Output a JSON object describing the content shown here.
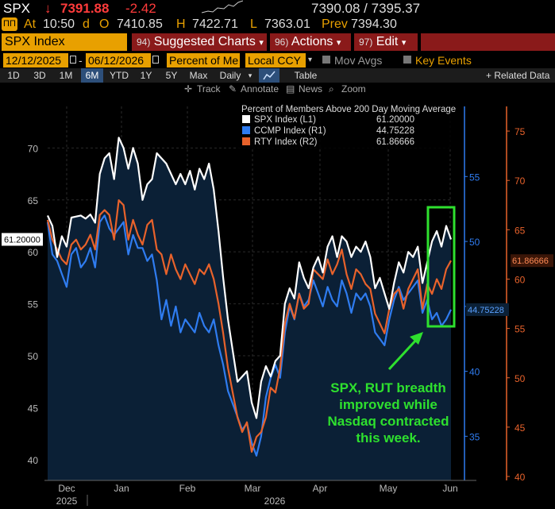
{
  "quote": {
    "ticker": "SPX",
    "arrow": "↓",
    "price": "7391.88",
    "change": "-2.42",
    "bid_ask": "7390.08 / 7395.37",
    "at_label": "At",
    "time": "10:50",
    "d_label": "d",
    "open_label": "O",
    "open": "7410.85",
    "high_label": "H",
    "high": "7422.71",
    "low_label": "L",
    "low": "7363.01",
    "prev_label": "Prev",
    "prev": "7394.30",
    "icon": "ticker-badge-icon"
  },
  "command_bar": {
    "security": "SPX Index",
    "suggested_num": "94)",
    "suggested_label": "Suggested Charts",
    "actions_num": "96)",
    "actions_label": "Actions",
    "edit_num": "97)",
    "edit_label": "Edit"
  },
  "params": {
    "start_date": "12/12/2025",
    "end_date": "06/12/2026",
    "field": "Percent of Me",
    "currency": "Local CCY",
    "mov_avgs": "Mov Avgs",
    "key_events": "Key Events"
  },
  "periods": [
    "1D",
    "3D",
    "1M",
    "6M",
    "YTD",
    "1Y",
    "5Y",
    "Max"
  ],
  "active_period": "6M",
  "frequency": "Daily",
  "table_label": "Table",
  "related_label": "+ Related Data",
  "tools": {
    "track": "Track",
    "annotate": "Annotate",
    "news": "News",
    "zoom": "Zoom"
  },
  "colors": {
    "spx": "#ffffff",
    "ccmp": "#2f7cf0",
    "rty": "#e8622b",
    "area": "#0b2036",
    "annotation": "#2ee02e",
    "amber": "#e8a000"
  },
  "chart_data": {
    "type": "line",
    "title": "Percent of Members Above 200 Day Moving Average",
    "x_labels": [
      "Dec",
      "Jan",
      "Feb",
      "Mar",
      "Apr",
      "May",
      "Jun"
    ],
    "year_labels": [
      "2025",
      "2026"
    ],
    "y_left": {
      "ticks": [
        40,
        45,
        50,
        55,
        60,
        65,
        70
      ],
      "range": [
        38,
        74
      ]
    },
    "y_r1": {
      "ticks": [
        35,
        40,
        45,
        50,
        55
      ],
      "range": [
        31.6,
        60.4
      ]
    },
    "y_r2": {
      "ticks": [
        40,
        45,
        50,
        55,
        60,
        65,
        70,
        75
      ],
      "range": [
        39.6,
        77.5
      ]
    },
    "series": [
      {
        "name": "SPX Index",
        "axis": "L1",
        "last": "61.20000",
        "values": [
          63.5,
          62.5,
          59.5,
          61.5,
          60.5,
          63.3,
          63.4,
          63.5,
          63.2,
          63.6,
          62.8,
          67.5,
          69.0,
          69.5,
          67.0,
          71.0,
          70.0,
          68.0,
          70.0,
          68.5,
          65.0,
          66.5,
          67.0,
          69.5,
          69.0,
          68.5,
          67.5,
          66.5,
          67.5,
          66.5,
          67.8,
          66.0,
          68.0,
          67.0,
          68.5,
          66.0,
          62.0,
          57.5,
          53.5,
          50.5,
          47.5,
          48.0,
          48.5,
          45.5,
          44.0,
          47.5,
          49.0,
          48.0,
          49.5,
          50.0,
          55.0,
          56.5,
          55.5,
          59.0,
          57.5,
          56.5,
          58.5,
          59.5,
          58.0,
          60.5,
          61.5,
          59.5,
          61.5,
          61.0,
          59.5,
          60.5,
          60.0,
          61.0,
          59.5,
          56.5,
          57.5,
          56.0,
          54.5,
          57.0,
          59.0,
          58.0,
          60.0,
          59.5,
          60.5,
          57.0,
          59.0,
          61.0,
          62.0,
          60.5,
          62.5,
          61.2
        ]
      },
      {
        "name": "CCMP Index",
        "axis": "R1",
        "last": "44.75228",
        "values": [
          51.5,
          49.0,
          48.5,
          47.5,
          46.5,
          49.0,
          49.5,
          48.0,
          48.5,
          49.5,
          48.0,
          51.5,
          52.0,
          51.0,
          50.5,
          51.0,
          51.5,
          49.0,
          50.5,
          49.5,
          49.5,
          48.5,
          49.0,
          47.0,
          44.0,
          45.5,
          43.5,
          45.0,
          43.0,
          44.0,
          43.5,
          43.0,
          44.5,
          43.5,
          43.0,
          44.0,
          42.0,
          40.5,
          38.5,
          37.5,
          36.5,
          35.5,
          36.0,
          34.5,
          33.5,
          35.0,
          38.0,
          39.5,
          40.5,
          39.5,
          43.0,
          45.0,
          44.0,
          46.0,
          45.0,
          45.5,
          47.0,
          46.0,
          45.0,
          46.5,
          45.5,
          45.0,
          47.0,
          46.0,
          44.5,
          46.0,
          45.5,
          46.0,
          45.0,
          43.0,
          42.5,
          42.0,
          44.0,
          45.5,
          46.5,
          45.5,
          46.0,
          46.5,
          47.0,
          44.5,
          45.5,
          44.0,
          44.5,
          43.5,
          44.0,
          44.75
        ]
      },
      {
        "name": "RTY Index",
        "axis": "R2",
        "last": "61.86666",
        "values": [
          66.0,
          64.0,
          63.0,
          62.0,
          61.5,
          63.5,
          64.0,
          63.0,
          63.5,
          64.5,
          63.0,
          66.5,
          67.0,
          66.5,
          64.0,
          68.0,
          67.5,
          64.0,
          66.0,
          64.5,
          63.5,
          65.5,
          66.0,
          63.0,
          62.5,
          60.5,
          62.5,
          61.0,
          60.0,
          61.5,
          60.5,
          59.5,
          61.0,
          60.5,
          61.5,
          60.0,
          57.5,
          54.5,
          51.0,
          48.5,
          46.0,
          44.5,
          45.5,
          42.5,
          44.0,
          44.5,
          46.0,
          49.0,
          48.5,
          51.0,
          55.5,
          57.5,
          56.0,
          58.5,
          57.0,
          57.5,
          61.0,
          60.5,
          60.0,
          62.0,
          60.5,
          61.5,
          63.0,
          60.5,
          59.0,
          61.0,
          60.5,
          59.5,
          59.0,
          56.5,
          55.5,
          54.5,
          57.0,
          58.5,
          59.0,
          57.0,
          59.0,
          60.0,
          61.0,
          57.0,
          59.5,
          58.5,
          60.0,
          59.0,
          61.0,
          61.87
        ]
      }
    ],
    "annotation_lines": [
      "SPX, RUT breadth",
      "improved while",
      "Nasdaq contracted",
      "this week."
    ]
  }
}
